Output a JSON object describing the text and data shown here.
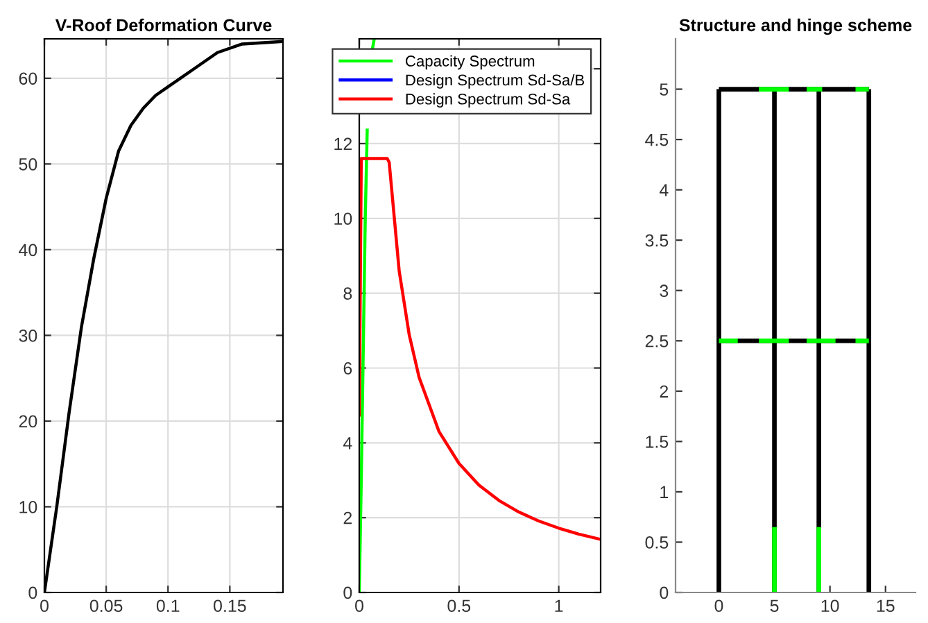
{
  "chart_data": [
    {
      "type": "line",
      "title": "V-Roof Deformation Curve",
      "grid": true,
      "xlim": [
        0,
        0.193
      ],
      "ylim": [
        0,
        64.6
      ],
      "xticks": [
        0,
        0.05,
        0.1,
        0.15
      ],
      "yticks": [
        0,
        10,
        20,
        30,
        40,
        50,
        60
      ],
      "series": [
        {
          "color": "#000000",
          "x": [
            0,
            0.01,
            0.02,
            0.03,
            0.04,
            0.05,
            0.06,
            0.07,
            0.08,
            0.09,
            0.1,
            0.12,
            0.14,
            0.16,
            0.193
          ],
          "values": [
            0,
            10,
            21,
            31,
            39,
            46,
            51.5,
            54.5,
            56.5,
            58,
            59,
            61,
            63,
            64,
            64.3
          ]
        }
      ]
    },
    {
      "type": "line",
      "grid": true,
      "legend": "top left",
      "xlim": [
        0,
        1.21
      ],
      "ylim": [
        0,
        14.8
      ],
      "xticks": [
        0,
        0.5,
        1
      ],
      "yticks": [
        0,
        2,
        4,
        6,
        8,
        10,
        12,
        {
          "value": 14,
          "label": null
        }
      ],
      "series": [
        {
          "name": "Capacity Spectrum",
          "color": "#00ff00",
          "x": [
            0,
            0.01,
            0.02,
            0.03,
            0.04,
            0.05,
            0.065,
            0.075
          ],
          "values": [
            0,
            3,
            6.5,
            10,
            12.4,
            null,
            14.5,
            14.8
          ]
        },
        {
          "name": "Design Spectrum Sd-Sa/B",
          "color": "#0000ff"
        },
        {
          "name": "Design Spectrum Sd-Sa",
          "color": "#ff0000",
          "x": [
            0,
            0.01,
            0.14,
            0.15,
            0.2,
            0.25,
            0.3,
            0.4,
            0.5,
            0.6,
            0.7,
            0.8,
            0.9,
            1.0,
            1.1,
            1.21
          ],
          "values": [
            4.7,
            11.6,
            11.6,
            11.5,
            8.6,
            6.9,
            5.75,
            4.3,
            3.45,
            2.87,
            2.46,
            2.15,
            1.91,
            1.72,
            1.56,
            1.42
          ]
        }
      ]
    },
    {
      "type": "line",
      "title": "Structure and hinge scheme",
      "grid": false,
      "xlim": [
        -3.9,
        17.7
      ],
      "ylim": [
        0,
        5.5
      ],
      "xticks": [
        0,
        5,
        10,
        15
      ],
      "yticks": [
        0,
        0.5,
        1,
        1.5,
        2,
        2.5,
        3,
        3.5,
        4,
        4.5,
        5
      ],
      "series": [
        {
          "color": "#000000",
          "x": [
            0,
            0
          ],
          "values": [
            0,
            5
          ]
        },
        {
          "color": "#000000",
          "x": [
            5,
            5
          ],
          "values": [
            0,
            5
          ]
        },
        {
          "color": "#000000",
          "x": [
            9,
            9
          ],
          "values": [
            0,
            5
          ]
        },
        {
          "color": "#000000",
          "x": [
            13.5,
            13.5
          ],
          "values": [
            0,
            5
          ]
        },
        {
          "color": "#000000",
          "x": [
            0,
            13.5
          ],
          "values": [
            2.5,
            2.5
          ]
        },
        {
          "color": "#000000",
          "x": [
            0,
            13.5
          ],
          "values": [
            5,
            5
          ]
        },
        {
          "color": "#00ff00",
          "x": [
            3.6,
            6.3
          ],
          "values": [
            5,
            5
          ]
        },
        {
          "color": "#00ff00",
          "x": [
            7.9,
            9.3
          ],
          "values": [
            5,
            5
          ]
        },
        {
          "color": "#00ff00",
          "x": [
            12.3,
            13.5
          ],
          "values": [
            5,
            5
          ]
        },
        {
          "color": "#00ff00",
          "x": [
            0,
            1.7
          ],
          "values": [
            2.5,
            2.5
          ]
        },
        {
          "color": "#00ff00",
          "x": [
            3.6,
            6.3
          ],
          "values": [
            2.5,
            2.5
          ]
        },
        {
          "color": "#00ff00",
          "x": [
            7.9,
            10.5
          ],
          "values": [
            2.5,
            2.5
          ]
        },
        {
          "color": "#00ff00",
          "x": [
            12.3,
            13.5
          ],
          "values": [
            2.5,
            2.5
          ]
        },
        {
          "color": "#00ff00",
          "x": [
            5,
            5
          ],
          "values": [
            0,
            0.65
          ]
        },
        {
          "color": "#00ff00",
          "x": [
            9,
            9
          ],
          "values": [
            0,
            0.65
          ]
        }
      ]
    }
  ]
}
